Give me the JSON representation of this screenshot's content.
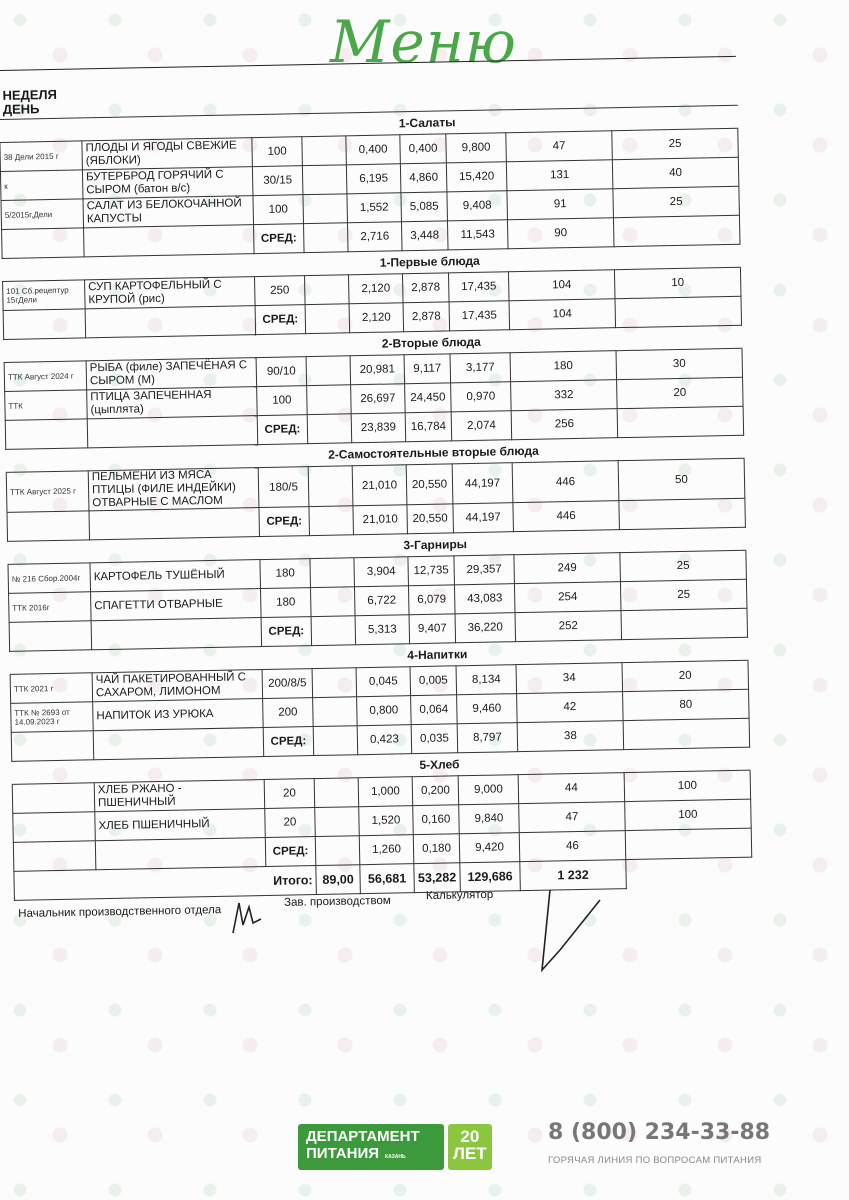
{
  "title": "Меню",
  "header": {
    "week": "НЕДЕЛЯ",
    "day": "ДЕНЬ"
  },
  "avg_label": "СРЕД:",
  "sections": [
    {
      "title": "1-Салаты",
      "rows": [
        {
          "code": "38 Дели 2015 г",
          "name": "ПЛОДЫ И ЯГОДЫ СВЕЖИЕ (ЯБЛОКИ)",
          "portion": "100",
          "protein": "0,400",
          "fat": "0,400",
          "carbs": "9,800",
          "kcal": "47",
          "extra": "25"
        },
        {
          "code": "к",
          "name": "БУТЕРБРОД ГОРЯЧИЙ С СЫРОМ (батон в/с)",
          "portion": "30/15",
          "protein": "6,195",
          "fat": "4,860",
          "carbs": "15,420",
          "kcal": "131",
          "extra": "40"
        },
        {
          "code": "5/2015г,Дели",
          "name": "САЛАТ ИЗ БЕЛОКОЧАННОЙ КАПУСТЫ",
          "portion": "100",
          "protein": "1,552",
          "fat": "5,085",
          "carbs": "9,408",
          "kcal": "91",
          "extra": "25"
        }
      ],
      "avg": {
        "protein": "2,716",
        "fat": "3,448",
        "carbs": "11,543",
        "kcal": "90"
      }
    },
    {
      "title": "1-Первые блюда",
      "rows": [
        {
          "code": "101 Сб.рецептур 15гДели",
          "name": "СУП КАРТОФЕЛЬНЫЙ С КРУПОЙ (рис)",
          "portion": "250",
          "protein": "2,120",
          "fat": "2,878",
          "carbs": "17,435",
          "kcal": "104",
          "extra": "10"
        }
      ],
      "avg": {
        "protein": "2,120",
        "fat": "2,878",
        "carbs": "17,435",
        "kcal": "104"
      }
    },
    {
      "title": "2-Вторые блюда",
      "rows": [
        {
          "code": "ТТК Август 2024 г",
          "name": "РЫБА (филе) ЗАПЕЧЁНАЯ С СЫРОМ (М)",
          "portion": "90/10",
          "protein": "20,981",
          "fat": "9,117",
          "carbs": "3,177",
          "kcal": "180",
          "extra": "30"
        },
        {
          "code": "ТТК",
          "name": "ПТИЦА ЗАПЕЧЕННАЯ (цыплята)",
          "portion": "100",
          "protein": "26,697",
          "fat": "24,450",
          "carbs": "0,970",
          "kcal": "332",
          "extra": "20"
        }
      ],
      "avg": {
        "protein": "23,839",
        "fat": "16,784",
        "carbs": "2,074",
        "kcal": "256"
      }
    },
    {
      "title": "2-Самостоятельные вторые блюда",
      "rows": [
        {
          "code": "ТТК Август 2025 г",
          "name": "ПЕЛЬМЕНИ ИЗ МЯСА ПТИЦЫ (ФИЛЕ ИНДЕЙКИ) ОТВАРНЫЕ С МАСЛОМ",
          "portion": "180/5",
          "protein": "21,010",
          "fat": "20,550",
          "carbs": "44,197",
          "kcal": "446",
          "extra": "50"
        }
      ],
      "avg": {
        "protein": "21,010",
        "fat": "20,550",
        "carbs": "44,197",
        "kcal": "446"
      }
    },
    {
      "title": "3-Гарниры",
      "rows": [
        {
          "code": "№ 216 Сбор.2004г",
          "name": "КАРТОФЕЛЬ ТУШЁНЫЙ",
          "portion": "180",
          "protein": "3,904",
          "fat": "12,735",
          "carbs": "29,357",
          "kcal": "249",
          "extra": "25"
        },
        {
          "code": "ТТК 2016г",
          "name": "СПАГЕТТИ ОТВАРНЫЕ",
          "portion": "180",
          "protein": "6,722",
          "fat": "6,079",
          "carbs": "43,083",
          "kcal": "254",
          "extra": "25"
        }
      ],
      "avg": {
        "protein": "5,313",
        "fat": "9,407",
        "carbs": "36,220",
        "kcal": "252"
      }
    },
    {
      "title": "4-Напитки",
      "rows": [
        {
          "code": "ТТК 2021 г",
          "name": "ЧАЙ ПАКЕТИРОВАННЫЙ С САХАРОМ, ЛИМОНОМ",
          "portion": "200/8/5",
          "protein": "0,045",
          "fat": "0,005",
          "carbs": "8,134",
          "kcal": "34",
          "extra": "20"
        },
        {
          "code": "ТТК № 2693 от 14.09.2023 г",
          "name": "НАПИТОК ИЗ УРЮКА",
          "portion": "200",
          "protein": "0,800",
          "fat": "0,064",
          "carbs": "9,460",
          "kcal": "42",
          "extra": "80"
        }
      ],
      "avg": {
        "protein": "0,423",
        "fat": "0,035",
        "carbs": "8,797",
        "kcal": "38"
      }
    },
    {
      "title": "5-Хлеб",
      "rows": [
        {
          "code": "",
          "name": "ХЛЕБ РЖАНО - ПШЕНИЧНЫЙ",
          "portion": "20",
          "protein": "1,000",
          "fat": "0,200",
          "carbs": "9,000",
          "kcal": "44",
          "extra": "100"
        },
        {
          "code": "",
          "name": "ХЛЕБ ПШЕНИЧНЫЙ",
          "portion": "20",
          "protein": "1,520",
          "fat": "0,160",
          "carbs": "9,840",
          "kcal": "47",
          "extra": "100"
        }
      ],
      "avg": {
        "protein": "1,260",
        "fat": "0,180",
        "carbs": "9,420",
        "kcal": "46"
      }
    }
  ],
  "total": {
    "label": "Итого:",
    "blank": "89,00",
    "protein": "56,681",
    "fat": "53,282",
    "carbs": "129,686",
    "kcal": "1 232"
  },
  "signatures": {
    "head": "Начальник производственного отдела",
    "production": "Зав. производством",
    "calculator": "Калькулятор"
  },
  "footer": {
    "logo_line1": "ДЕПАРТАМЕНТ",
    "logo_line2": "ПИТАНИЯ",
    "logo_city": "КАЗАНЬ",
    "logo_years": "20",
    "logo_years_word": "ЛЕТ",
    "phone": "8 (800) 234-33-88",
    "hotline": "ГОРЯЧАЯ ЛИНИЯ ПО ВОПРОСАМ ПИТАНИЯ"
  },
  "colors": {
    "brand_green": "#3c9a3c",
    "light_green": "#8cc63f",
    "title_green": "#4aa84a"
  }
}
